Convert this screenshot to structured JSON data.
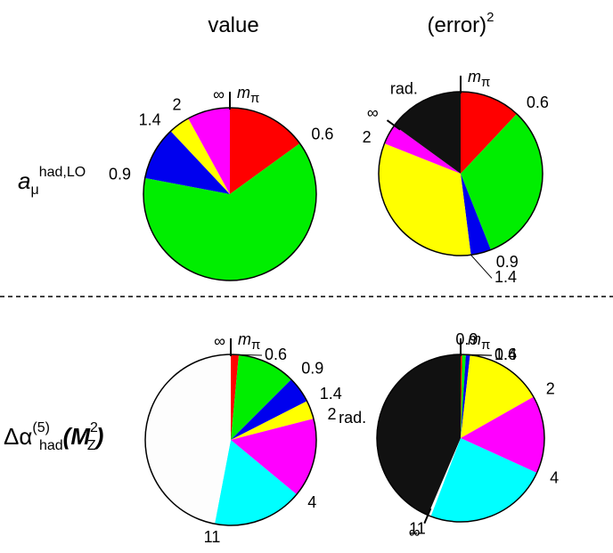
{
  "column_titles": [
    {
      "text": "value"
    },
    {
      "text": "(error)",
      "sup": "2"
    }
  ],
  "row_labels": [
    [
      {
        "text": "a",
        "pos": "base-italic"
      },
      {
        "text": "μ",
        "pos": "sub"
      },
      {
        "text": "had,LO",
        "pos": "sup"
      }
    ],
    [
      {
        "text": "Δα",
        "pos": "base"
      },
      {
        "text": "(5)",
        "pos": "sup"
      },
      {
        "text": "had",
        "pos": "sub"
      },
      {
        "text": "(M",
        "pos": "base-italic"
      },
      {
        "text": "2",
        "pos": "sup"
      },
      {
        "text": "Z",
        "pos": "sub"
      },
      {
        "text": ")",
        "pos": "base-italic"
      }
    ]
  ],
  "chart_data": [
    {
      "type": "pie",
      "start_label": {
        "text": "m",
        "sub": "π"
      },
      "values": [
        15,
        63,
        10,
        4,
        8
      ],
      "colors": [
        "#ff0000",
        "#00ee00",
        "#0000ee",
        "#ffff00",
        "#ff00ff"
      ],
      "boundary_labels": [
        "0.6",
        "0.9",
        "1.4",
        "2",
        "∞"
      ],
      "segment_labels": [
        null,
        null,
        null,
        null,
        null
      ]
    },
    {
      "type": "pie",
      "start_label": {
        "text": "m",
        "sub": "π"
      },
      "values": [
        12,
        32,
        4,
        33,
        4,
        15
      ],
      "colors": [
        "#ff0000",
        "#00ee00",
        "#0000ee",
        "#ffff00",
        "#ff00ff",
        "#111111"
      ],
      "boundary_labels": [
        "0.6",
        "0.9",
        "1.4",
        "2",
        "∞",
        null
      ],
      "segment_labels": [
        null,
        null,
        null,
        null,
        null,
        "rad."
      ]
    },
    {
      "type": "pie",
      "start_label": {
        "text": "m",
        "sub": "π"
      },
      "values": [
        1.5,
        11,
        5,
        3.5,
        15,
        17,
        47
      ],
      "colors": [
        "#ff0000",
        "#00ee00",
        "#0000ee",
        "#ffff00",
        "#ff00ff",
        "#00ffff",
        "#fdfdfd"
      ],
      "boundary_labels": [
        "0.6",
        "0.9",
        "1.4",
        "2",
        "4",
        "11",
        "∞"
      ],
      "segment_labels": [
        null,
        null,
        null,
        null,
        null,
        null,
        null
      ]
    },
    {
      "type": "pie",
      "start_label": {
        "text": "m",
        "sub": "π"
      },
      "values": [
        0.3,
        0.7,
        0.8,
        15,
        15,
        24,
        0.6,
        43.6
      ],
      "colors": [
        "#ff0000",
        "#00ee00",
        "#0000ee",
        "#ffff00",
        "#ff00ff",
        "#00ffff",
        "#fdfdfd",
        "#111111"
      ],
      "boundary_labels": [
        "0.6",
        "0.9",
        "1.4",
        "2",
        "4",
        "11",
        "∞",
        null
      ],
      "segment_labels": [
        null,
        null,
        null,
        null,
        null,
        null,
        null,
        "rad."
      ]
    }
  ]
}
